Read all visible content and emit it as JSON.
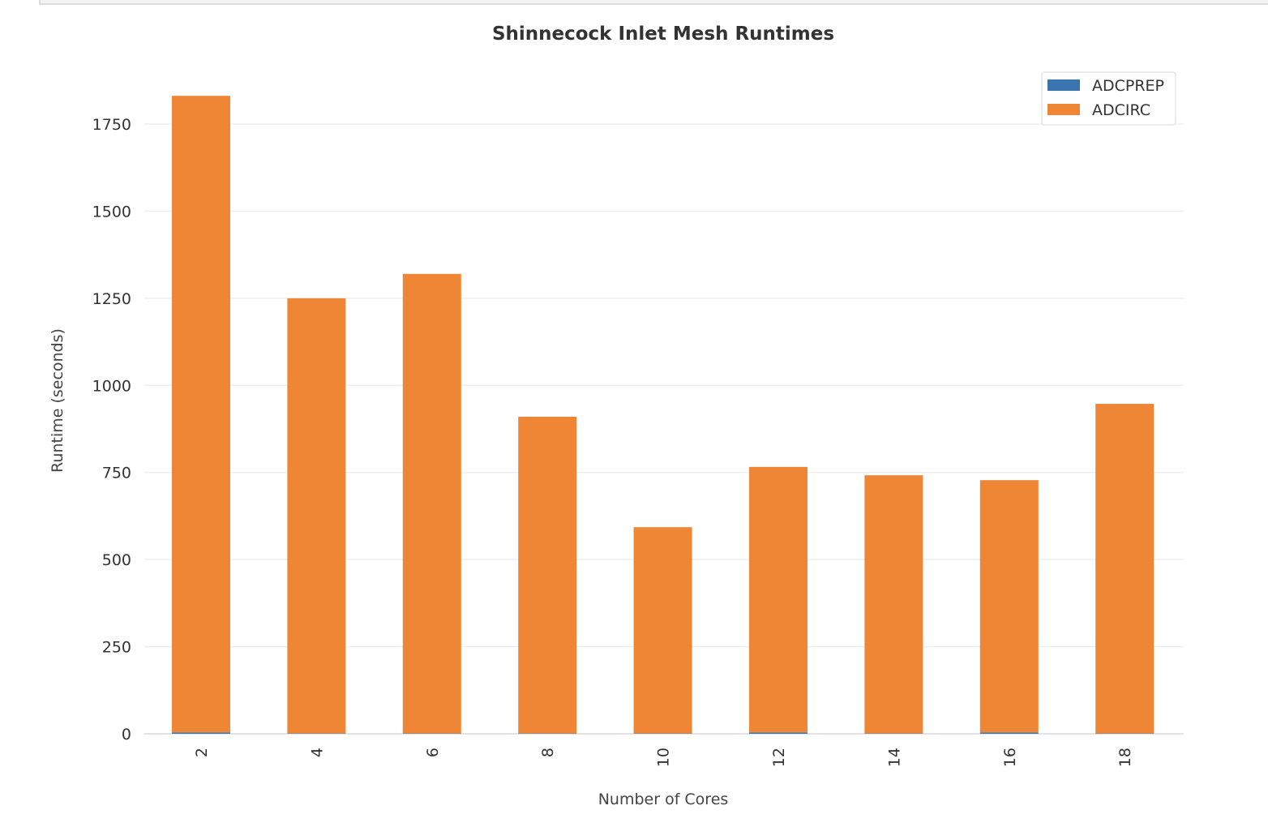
{
  "chart_data": {
    "type": "bar",
    "stacked": true,
    "title": "Shinnecock Inlet Mesh Runtimes",
    "xlabel": "Number of Cores",
    "ylabel": "Runtime (seconds)",
    "categories": [
      "2",
      "4",
      "6",
      "8",
      "10",
      "12",
      "14",
      "16",
      "18"
    ],
    "series": [
      {
        "name": "ADCPREP",
        "color": "#3a75b0",
        "values": [
          4,
          1,
          1,
          1,
          1,
          4,
          1,
          4,
          1
        ]
      },
      {
        "name": "ADCIRC",
        "color": "#ef8636",
        "values": [
          1827,
          1249,
          1319,
          909,
          592,
          762,
          741,
          724,
          946
        ]
      }
    ],
    "yticks": [
      0,
      250,
      500,
      750,
      1000,
      1250,
      1500,
      1750
    ],
    "ylim": [
      0,
      1920
    ],
    "grid": "horizontal",
    "legend": "top-right"
  }
}
